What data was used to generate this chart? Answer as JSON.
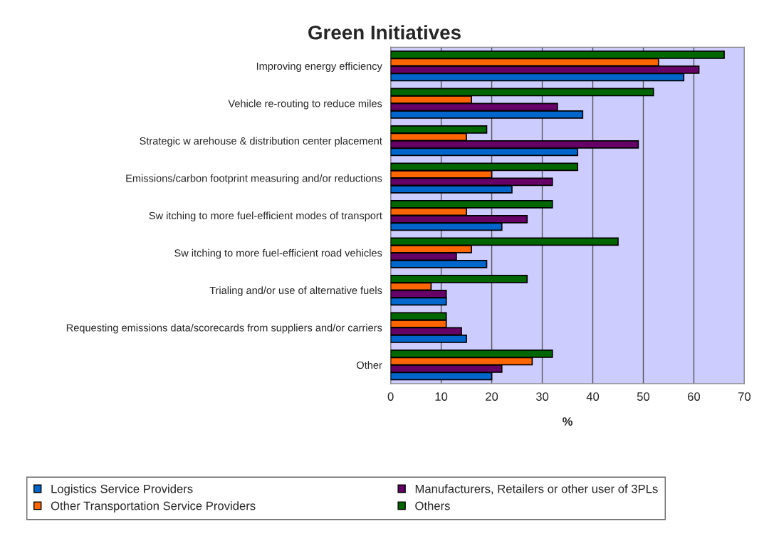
{
  "chart_data": {
    "type": "bar",
    "orientation": "horizontal",
    "title": "Green Initiatives",
    "xlabel": "%",
    "categories": [
      "Improving energy efficiency",
      "Vehicle re-routing to reduce miles",
      "Strategic w arehouse & distribution center placement",
      "Emissions/carbon footprint measuring and/or reductions",
      "Sw itching to more fuel-efficient modes of transport",
      "Sw itching to more fuel-efficient road vehicles",
      "Trialing and/or use of alternative fuels",
      "Requesting emissions data/scorecards from suppliers and/or carriers",
      "Other"
    ],
    "series": [
      {
        "name": "Logistics Service Providers",
        "color": "#0066cc",
        "values": [
          58,
          38,
          37,
          24,
          22,
          19,
          11,
          15,
          20
        ]
      },
      {
        "name": "Manufacturers, Retailers or other user of 3PLs",
        "color": "#660066",
        "values": [
          61,
          33,
          49,
          32,
          27,
          13,
          11,
          14,
          22
        ]
      },
      {
        "name": "Other Transportation Service Providers",
        "color": "#ff6600",
        "values": [
          53,
          16,
          15,
          20,
          15,
          16,
          8,
          11,
          28
        ]
      },
      {
        "name": "Others",
        "color": "#006600",
        "values": [
          66,
          52,
          19,
          37,
          32,
          45,
          27,
          11,
          32
        ]
      }
    ],
    "xlim": [
      0,
      70
    ],
    "xticks": [
      0,
      10,
      20,
      30,
      40,
      50,
      60,
      70
    ],
    "grid": "x",
    "legend": "bottom"
  }
}
